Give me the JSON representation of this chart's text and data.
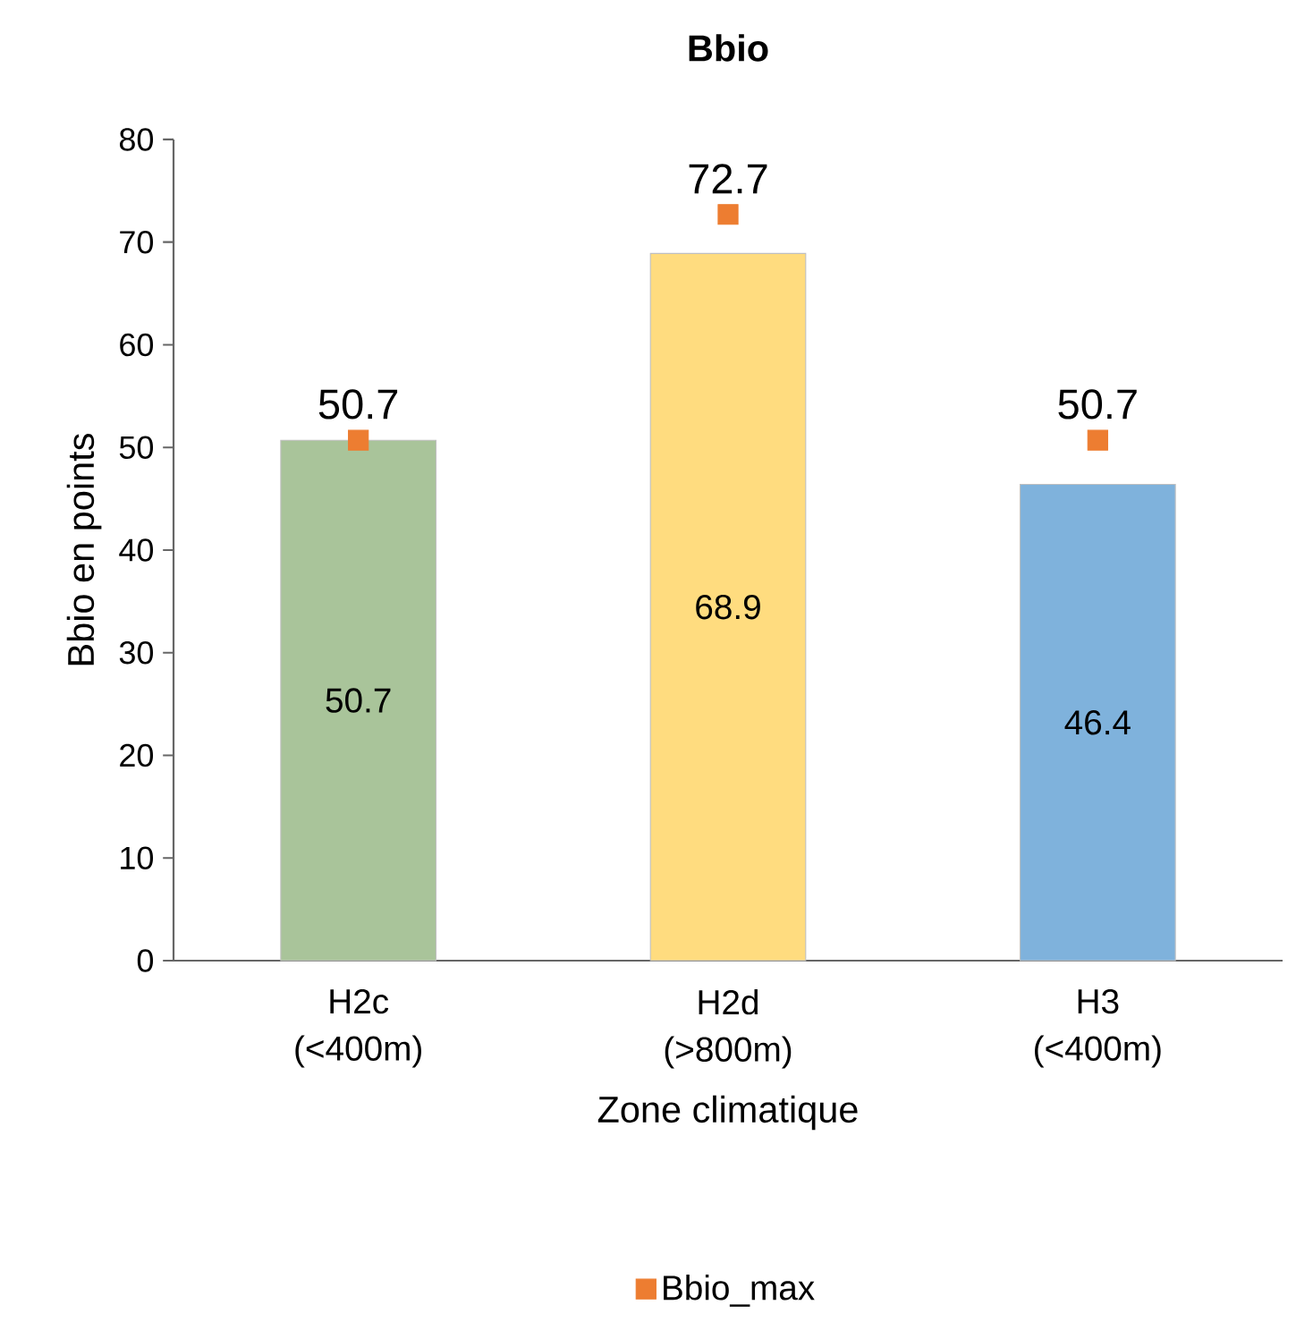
{
  "chart_data": {
    "type": "bar",
    "title": "Bbio",
    "xlabel": "Zone climatique",
    "ylabel": "Bbio en points",
    "categories": [
      "H2c (<400m)",
      "H2d (>800m)",
      "H3 (<400m)"
    ],
    "ylim": [
      0,
      80
    ],
    "yticks": [
      0,
      10,
      20,
      30,
      40,
      50,
      60,
      70,
      80
    ],
    "legend": "bottom",
    "marker": "square",
    "series": [
      {
        "type": "bar",
        "colors": [
          "#a9c49a",
          "#ffdc7f",
          "#7fb2dc"
        ],
        "values": [
          50.7,
          68.9,
          46.4
        ],
        "value_labels": [
          "50.7",
          "68.9",
          "46.4"
        ]
      },
      {
        "name": "Bbio_max",
        "type": "scatter",
        "color": "#ed7d31",
        "values": [
          50.7,
          72.7,
          50.7
        ],
        "value_labels": [
          "50.7",
          "72.7",
          "50.7"
        ]
      }
    ]
  }
}
